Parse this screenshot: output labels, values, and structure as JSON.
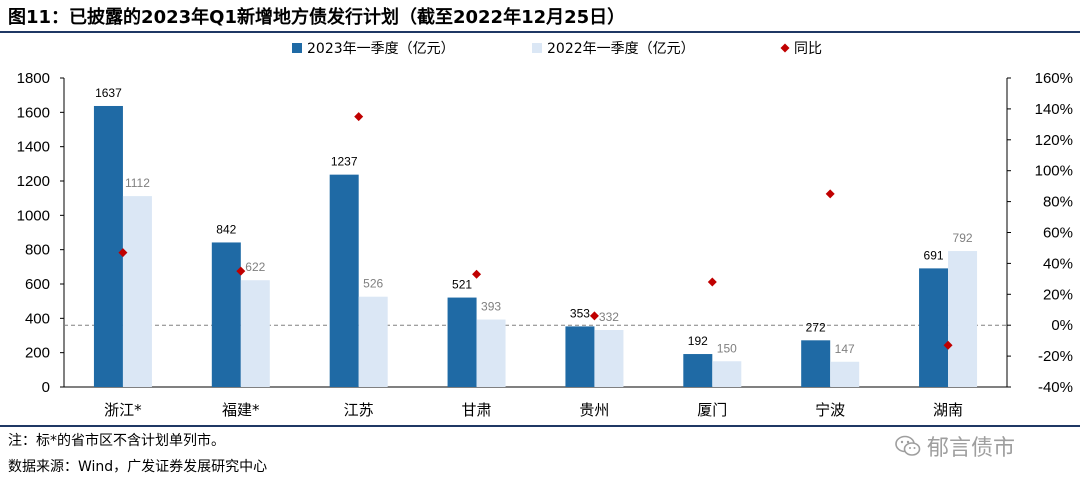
{
  "title": "图11：已披露的2023年Q1新增地方债发行计划（截至2022年12月25日）",
  "note": "注：标*的省市区不含计划单列市。",
  "source": "数据来源：Wind，广发证券发展研究中心",
  "watermark": "郁言债市",
  "colors": {
    "series2023": "#1f6aa5",
    "series2022": "#dbe7f5",
    "yoy": "#c00000",
    "label2022": "#7f7f7f"
  },
  "chart_data": {
    "type": "bar",
    "categories": [
      "浙江*",
      "福建*",
      "江苏",
      "甘肃",
      "贵州",
      "厦门",
      "宁波",
      "湖南"
    ],
    "series": [
      {
        "name": "2023年一季度（亿元）",
        "values": [
          1637,
          842,
          1237,
          521,
          353,
          192,
          272,
          691
        ],
        "axis": "left",
        "type": "bar"
      },
      {
        "name": "2022年一季度（亿元）",
        "values": [
          1112,
          622,
          526,
          393,
          332,
          150,
          147,
          792
        ],
        "axis": "left",
        "type": "bar"
      },
      {
        "name": "同比",
        "values": [
          47,
          35,
          135,
          33,
          6,
          28,
          85,
          -13
        ],
        "axis": "right",
        "type": "scatter",
        "unit": "%"
      }
    ],
    "left_axis": {
      "min": 0,
      "max": 1800,
      "step": 200,
      "ticks": [
        "0",
        "200",
        "400",
        "600",
        "800",
        "1000",
        "1200",
        "1400",
        "1600",
        "1800"
      ]
    },
    "right_axis": {
      "min": -40,
      "max": 160,
      "step": 20,
      "ticks": [
        "-40%",
        "-20%",
        "0%",
        "20%",
        "40%",
        "60%",
        "80%",
        "100%",
        "120%",
        "140%",
        "160%"
      ]
    },
    "legend_position": "top",
    "grid": false,
    "zero_line_right_axis": true
  }
}
